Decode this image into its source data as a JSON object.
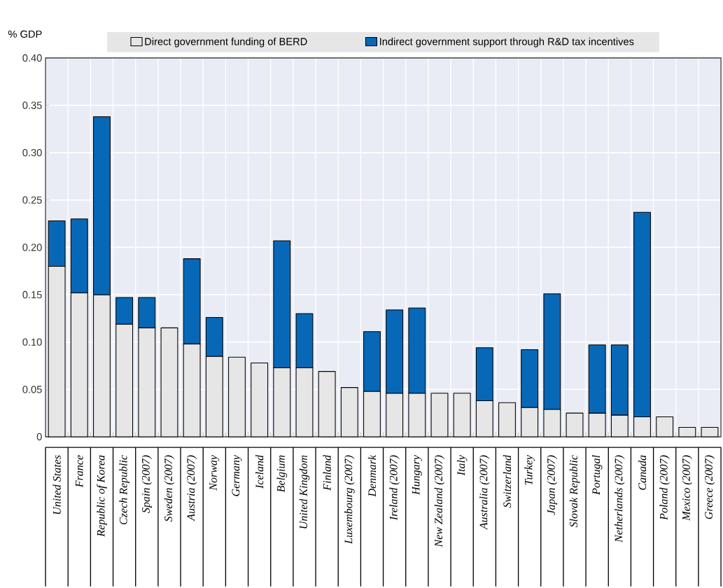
{
  "chart_data": {
    "type": "bar",
    "stacked": true,
    "ylabel": "% GDP",
    "categories": [
      "United States",
      "France",
      "Republic of Korea",
      "Czech Republic",
      "Spain (2007)",
      "Sweden (2007)",
      "Austria (2007)",
      "Norway",
      "Germany",
      "Iceland",
      "Belgium",
      "United Kingdom",
      "Finland",
      "Luxembourg (2007)",
      "Denmark",
      "Ireland (2007)",
      "Hungary",
      "New Zealand (2007)",
      "Italy",
      "Australia (2007)",
      "Switzerland",
      "Turkey",
      "Japan (2007)",
      "Slovak Republic",
      "Portugal",
      "Netherlands (2007)",
      "Canada",
      "Poland (2007)",
      "Mexico (2007)",
      "Greece (2007)"
    ],
    "series": [
      {
        "name": "Direct government funding of BERD",
        "color": "#e6e6e6",
        "values": [
          0.18,
          0.152,
          0.15,
          0.119,
          0.115,
          0.115,
          0.098,
          0.085,
          0.084,
          0.078,
          0.073,
          0.073,
          0.069,
          0.052,
          0.048,
          0.046,
          0.046,
          0.046,
          0.046,
          0.038,
          0.036,
          0.031,
          0.029,
          0.025,
          0.025,
          0.023,
          0.021,
          0.021,
          0.01,
          0.01
        ]
      },
      {
        "name": "Indirect government support through R&D tax incentives",
        "color": "#0868b8",
        "values": [
          0.048,
          0.078,
          0.188,
          0.028,
          0.032,
          null,
          0.09,
          0.041,
          null,
          null,
          0.134,
          0.057,
          null,
          null,
          0.063,
          0.088,
          0.09,
          null,
          null,
          0.056,
          null,
          0.061,
          0.122,
          null,
          0.072,
          0.074,
          0.216,
          null,
          null,
          null
        ]
      }
    ],
    "ylim": [
      0,
      0.4
    ],
    "yticks": [
      0,
      0.05,
      {
        "value": 0.1,
        "label": "0.10"
      },
      0.15,
      {
        "value": 0.2,
        "label": "0.20"
      },
      0.25,
      {
        "value": 0.3,
        "label": "0.30"
      },
      0.35,
      {
        "value": 0.4,
        "label": "0.40"
      }
    ],
    "grid": true,
    "legend": "top"
  }
}
